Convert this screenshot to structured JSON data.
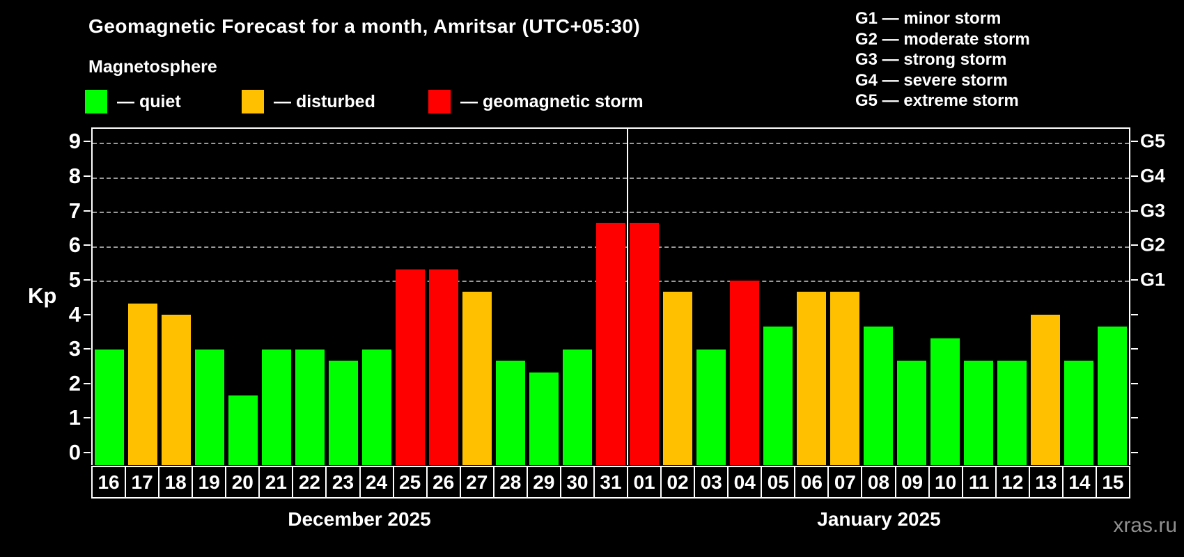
{
  "header": {
    "title": "Geomagnetic Forecast for a month, Amritsar (UTC+05:30)",
    "subtitle": "Magnetosphere"
  },
  "legend": {
    "items": [
      {
        "key": "quiet",
        "label": "— quiet"
      },
      {
        "key": "disturbed",
        "label": "— disturbed"
      },
      {
        "key": "storm",
        "label": "— geomagnetic storm"
      }
    ]
  },
  "g_legend": {
    "items": [
      {
        "text": "G1 — minor storm"
      },
      {
        "text": "G2 — moderate storm"
      },
      {
        "text": "G3 — strong storm"
      },
      {
        "text": "G4 — severe storm"
      },
      {
        "text": "G5 — extreme storm"
      }
    ]
  },
  "axis": {
    "kp_label": "Kp"
  },
  "months": [
    {
      "label": "December 2025"
    },
    {
      "label": "January 2025"
    }
  ],
  "watermark": {
    "text": "xras.ru"
  },
  "colors": {
    "quiet": "#00ff00",
    "disturbed": "#ffc000",
    "storm": "#ff0000",
    "grid": "#9a9a9a",
    "axis": "#ffffff",
    "watermark": "#8f8f8f"
  },
  "chart_data": {
    "type": "bar",
    "title": "Geomagnetic Forecast for a month, Amritsar (UTC+05:30)",
    "ylabel": "Kp",
    "categories": [
      "16",
      "17",
      "18",
      "19",
      "20",
      "21",
      "22",
      "23",
      "24",
      "25",
      "26",
      "27",
      "28",
      "29",
      "30",
      "31",
      "01",
      "02",
      "03",
      "04",
      "05",
      "06",
      "07",
      "08",
      "09",
      "10",
      "11",
      "12",
      "13",
      "14",
      "15"
    ],
    "values": [
      3,
      4.33,
      4,
      3,
      1.67,
      3,
      3,
      2.67,
      3,
      5.33,
      5.33,
      4.67,
      2.67,
      2.33,
      3,
      6.67,
      6.67,
      4.67,
      3,
      5,
      3.67,
      4.67,
      4.67,
      3.67,
      2.67,
      3.33,
      2.67,
      2.67,
      4,
      2.67,
      3.67
    ],
    "statuses": [
      "quiet",
      "disturbed",
      "disturbed",
      "quiet",
      "quiet",
      "quiet",
      "quiet",
      "quiet",
      "quiet",
      "storm",
      "storm",
      "disturbed",
      "quiet",
      "quiet",
      "quiet",
      "storm",
      "storm",
      "disturbed",
      "quiet",
      "storm",
      "quiet",
      "disturbed",
      "disturbed",
      "quiet",
      "quiet",
      "quiet",
      "quiet",
      "quiet",
      "disturbed",
      "quiet",
      "quiet"
    ],
    "month_split_index": 16,
    "y_ticks": [
      0,
      1,
      2,
      3,
      4,
      5,
      6,
      7,
      8,
      9
    ],
    "gridlines": [
      5,
      6,
      7,
      8,
      9
    ],
    "right_axis_labels": [
      {
        "value": 5,
        "label": "G1"
      },
      {
        "value": 6,
        "label": "G2"
      },
      {
        "value": 7,
        "label": "G3"
      },
      {
        "value": 8,
        "label": "G4"
      },
      {
        "value": 9,
        "label": "G5"
      }
    ],
    "ylim": [
      -0.36,
      9.41
    ],
    "grid": true,
    "legend_position": "top"
  }
}
